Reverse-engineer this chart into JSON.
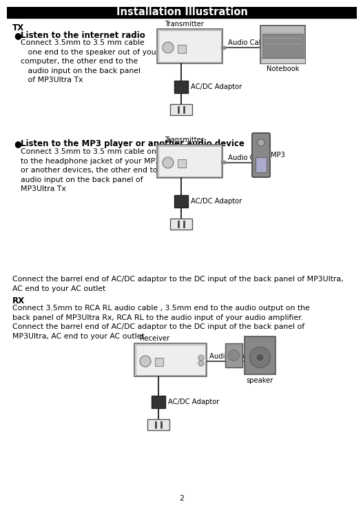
{
  "title": "Installation Illustration",
  "background": "#ffffff",
  "text_color": "#000000",
  "page_number": "2",
  "title_fontsize": 10.5,
  "body_fontsize": 7.8,
  "bold_fontsize": 8.5,
  "label_fontsize": 7.2,
  "sections": {
    "TX_label": "TX",
    "bullet1_title": "Listen to the internet radio",
    "bullet1_text": "Connect 3.5mm to 3.5 mm cable\n  one end to the speaker out of your\ncomputer, the other end to the\n  audio input on the back panel\n  of MP3Ultra Tx",
    "bullet2_title": "Listen to the MP3 player or another audio device",
    "bullet2_text": "Connect 3.5mm to 3.5 mm cable one end\nto the headphone jacket of your MP3 player\nor another devices, the other end to the\naudio input on the back panel of\nMP3Ultra Tx",
    "middle_text": "Connect the barrel end of AC/DC adaptor to the DC input of the back panel of MP3Ultra,\nAC end to your AC outlet",
    "RX_label": "RX",
    "RX_text": "Connect 3.5mm to RCA RL audio cable , 3.5mm end to the audio output on the\nback panel of MP3Ultra Rx, RCA RL to the audio input of your audio amplifier.\nConnect the barrel end of AC/DC adaptor to the DC input of the back panel of\nMP3Ultra, AC end to your AC outlet"
  },
  "labels": {
    "transmitter": "Transmitter",
    "audio_cable": "Audio Cable",
    "notebook": "Notebook",
    "acdc": "AC/DC Adaptor",
    "mp3": "MP3",
    "receiver": "Receiver",
    "speaker": "speaker"
  }
}
